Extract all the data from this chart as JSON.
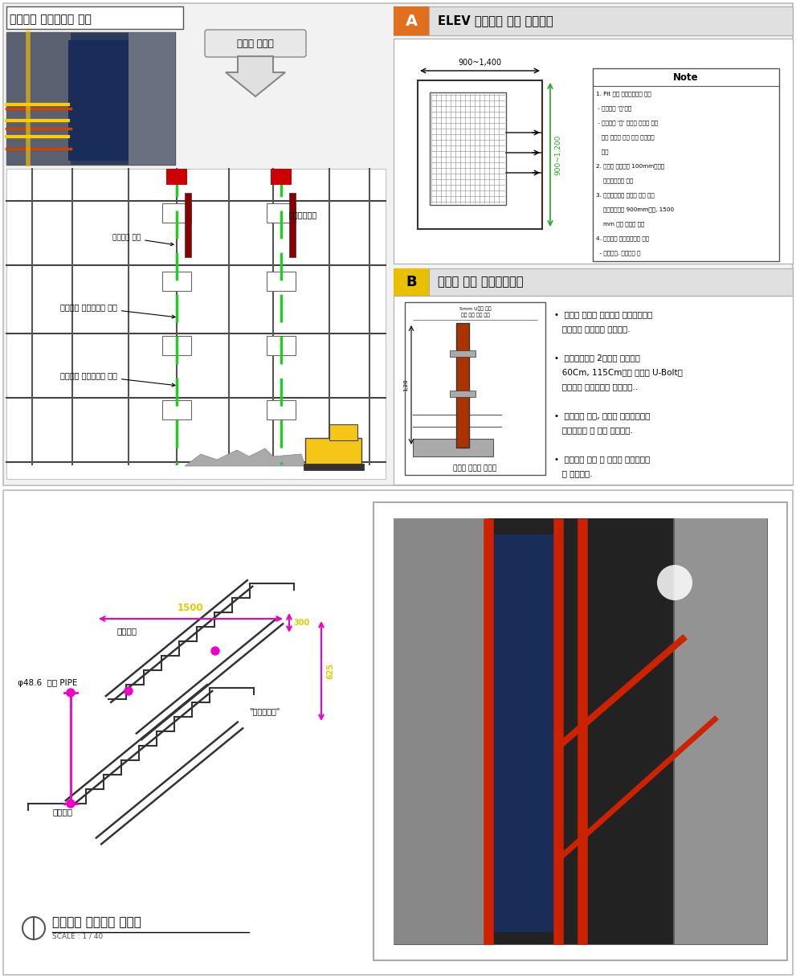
{
  "page_bg": "#ffffff",
  "top_panel_bg": "#f0f0f0",
  "top_left_title": "접근금지 수직보호망 설치",
  "arrow_label": "폐기물 반출구",
  "section_a_label": "A",
  "section_a_color": "#e07020",
  "section_a_title": "ELEV 추락방지 시설 설치계획",
  "section_a_dim_label": "900~1,400",
  "section_a_height_label": "900~1,200",
  "section_a_note_title": "Note",
  "section_a_notes": [
    "1. Pit 입구 형상감안하여 선정",
    " - 기본형은 'ㄱ'자형",
    " - 특별형은 'ㄱ' 자형을 별도의 제작",
    "   또는 기존의 물품 다소 변경하여",
    "   설치",
    "2. 난간을 아래에는 100mm이상의",
    "    발끝막이판을 설치",
    "3. 상부난간대는 바닥면 또는 동로",
    "    판면으로부터 900mm이상, 1500",
    "    mm 이내 높이를 유지",
    "4. 난간면에 화림표지판을 설치",
    "  - 추락주의, 출입표시 등"
  ],
  "section_b_label": "B",
  "section_b_color": "#e8c000",
  "section_b_title": "슬라브 단부 추락방지시설",
  "section_b_sub_label": "슬라브 난간대 상세도",
  "section_b_bullets": [
    "•  슬라브 난간이 콘크리트 바닥슬라브에",
    "   맞닿도록 견고하게 설치한다.",
    "",
    "•  단관파이프를 2단으로 바닥에서",
    "   60Cm, 115Cm되는 지점에 U-Bolt를",
    "   사용하여 안전난간을 설치한다..",
    "",
    "•  안전난간 설치, 해제시 해당근로자는",
    "   안전대착용 후 작업 진행한다.",
    "",
    "•  작업구간 추락 및 낙임물 위험표지판",
    "   을 설치한다."
  ],
  "bottom_left_title": "계단난간 안전시설 상세도",
  "bottom_left_subtitle": "SCALE : 1 / 40",
  "stair_label_pipe_clamp": "파이브렴",
  "stair_label_pipe": "φ48.6  단관 PIPE",
  "stair_label_product": "\"기성품상세\"",
  "stair_label_pipe_clamp2": "파이프렴",
  "dim_1500": "1500",
  "dim_300": "300",
  "dim_625": "625"
}
